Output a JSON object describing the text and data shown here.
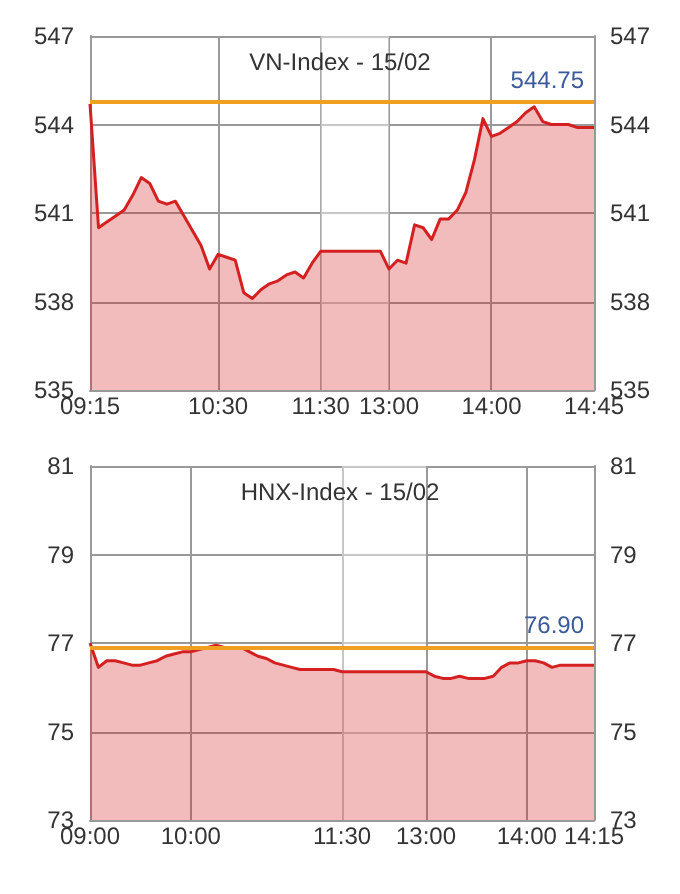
{
  "chart_data": [
    {
      "type": "area",
      "title": "VN-Index - 15/02",
      "grid": true,
      "categories": [
        "09:15",
        null,
        null,
        null,
        null,
        null,
        null,
        null,
        null,
        null,
        null,
        null,
        null,
        null,
        null,
        "10:30",
        null,
        null,
        null,
        null,
        null,
        null,
        null,
        null,
        null,
        null,
        null,
        "11:30",
        null,
        null,
        null,
        null,
        null,
        null,
        null,
        "13:00",
        null,
        null,
        null,
        null,
        null,
        null,
        null,
        null,
        null,
        null,
        null,
        "14:00",
        null,
        null,
        null,
        null,
        null,
        null,
        null,
        null,
        null,
        null,
        null,
        "14:45"
      ],
      "ylim": [
        535,
        547
      ],
      "yticks": [
        535,
        538,
        541,
        544,
        547
      ],
      "y2lim": [
        535,
        547
      ],
      "y2ticks": [
        535,
        538,
        541,
        544,
        547
      ],
      "series": [
        {
          "color": "#d42020",
          "values": [
            544.7,
            540.5,
            540.7,
            540.9,
            541.1,
            541.6,
            542.2,
            542.0,
            541.4,
            541.3,
            541.4,
            540.9,
            540.4,
            539.9,
            539.1,
            539.6,
            539.5,
            539.4,
            538.3,
            538.1,
            538.4,
            538.6,
            538.7,
            538.9,
            539.0,
            538.8,
            539.3,
            539.7,
            539.7,
            539.7,
            539.7,
            539.7,
            539.7,
            539.7,
            539.7,
            539.1,
            539.4,
            539.3,
            540.6,
            540.5,
            540.1,
            540.8,
            540.8,
            541.1,
            541.7,
            542.8,
            544.2,
            543.6,
            543.7,
            543.9,
            544.1,
            544.4,
            544.6,
            544.1,
            544.0,
            544.0,
            544.0,
            543.9,
            543.9,
            543.9
          ]
        }
      ],
      "ref_lines": [
        {
          "axis": "y",
          "value": 544.75,
          "label": "544.75",
          "color": "#f0a020"
        }
      ],
      "bands": [
        {
          "axis": "x",
          "from": "11:30",
          "to": "13:00",
          "color": "#ffffff"
        }
      ]
    },
    {
      "type": "area",
      "title": "HNX-Index - 15/02",
      "grid": true,
      "categories": [
        "09:00",
        null,
        null,
        null,
        null,
        null,
        null,
        null,
        null,
        null,
        null,
        null,
        "10:00",
        null,
        null,
        null,
        null,
        null,
        null,
        null,
        null,
        null,
        null,
        null,
        null,
        null,
        null,
        null,
        null,
        null,
        "11:30",
        null,
        null,
        null,
        null,
        null,
        null,
        null,
        null,
        null,
        "13:00",
        null,
        null,
        null,
        null,
        null,
        null,
        null,
        null,
        null,
        null,
        null,
        "14:00",
        null,
        null,
        null,
        null,
        null,
        null,
        null,
        "14:15"
      ],
      "ylim": [
        73,
        81
      ],
      "yticks": [
        73,
        75,
        77,
        79,
        81
      ],
      "y2lim": [
        73,
        81
      ],
      "y2ticks": [
        73,
        75,
        77,
        79,
        81
      ],
      "series": [
        {
          "color": "#d42020",
          "values": [
            77.0,
            76.45,
            76.6,
            76.6,
            76.55,
            76.5,
            76.5,
            76.55,
            76.6,
            76.7,
            76.75,
            76.8,
            76.8,
            76.85,
            76.9,
            76.95,
            76.9,
            76.9,
            76.9,
            76.8,
            76.7,
            76.65,
            76.55,
            76.5,
            76.45,
            76.4,
            76.4,
            76.4,
            76.4,
            76.4,
            76.35,
            76.35,
            76.35,
            76.35,
            76.35,
            76.35,
            76.35,
            76.35,
            76.35,
            76.35,
            76.35,
            76.25,
            76.2,
            76.2,
            76.25,
            76.2,
            76.2,
            76.2,
            76.25,
            76.45,
            76.55,
            76.55,
            76.6,
            76.6,
            76.55,
            76.45,
            76.5,
            76.5,
            76.5,
            76.5,
            76.5
          ]
        }
      ],
      "ref_lines": [
        {
          "axis": "y",
          "value": 76.9,
          "label": "76.90",
          "color": "#f0a020"
        }
      ],
      "bands": [
        {
          "axis": "x",
          "from": "11:30",
          "to": "13:00",
          "color": "#ffffff"
        }
      ]
    }
  ]
}
